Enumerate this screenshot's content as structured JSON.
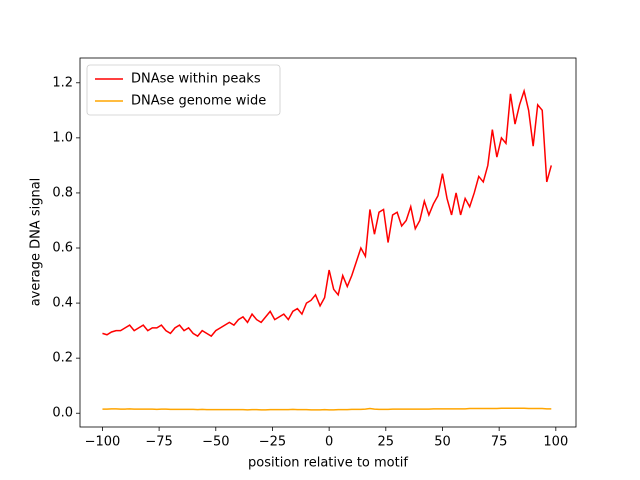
{
  "chart_data": {
    "type": "line",
    "xlabel": "position relative to motif",
    "ylabel": "average DNA signal",
    "x": [
      -100,
      -98,
      -96,
      -94,
      -92,
      -90,
      -88,
      -86,
      -84,
      -82,
      -80,
      -78,
      -76,
      -74,
      -72,
      -70,
      -68,
      -66,
      -64,
      -62,
      -60,
      -58,
      -56,
      -54,
      -52,
      -50,
      -48,
      -46,
      -44,
      -42,
      -40,
      -38,
      -36,
      -34,
      -32,
      -30,
      -28,
      -26,
      -24,
      -22,
      -20,
      -18,
      -16,
      -14,
      -12,
      -10,
      -8,
      -6,
      -4,
      -2,
      0,
      2,
      4,
      6,
      8,
      10,
      12,
      14,
      16,
      18,
      20,
      22,
      24,
      26,
      28,
      30,
      32,
      34,
      36,
      38,
      40,
      42,
      44,
      46,
      48,
      50,
      52,
      54,
      56,
      58,
      60,
      62,
      64,
      66,
      68,
      70,
      72,
      74,
      76,
      78,
      80,
      82,
      84,
      86,
      88,
      90,
      92,
      94,
      96,
      98
    ],
    "series": [
      {
        "name": "DNAse within peaks",
        "color": "#ff0000",
        "values": [
          0.29,
          0.285,
          0.295,
          0.3,
          0.3,
          0.31,
          0.32,
          0.3,
          0.31,
          0.32,
          0.3,
          0.31,
          0.31,
          0.32,
          0.3,
          0.29,
          0.31,
          0.32,
          0.3,
          0.31,
          0.29,
          0.28,
          0.3,
          0.29,
          0.28,
          0.3,
          0.31,
          0.32,
          0.33,
          0.32,
          0.34,
          0.35,
          0.33,
          0.36,
          0.34,
          0.33,
          0.35,
          0.37,
          0.34,
          0.35,
          0.36,
          0.34,
          0.37,
          0.38,
          0.36,
          0.4,
          0.41,
          0.43,
          0.39,
          0.42,
          0.52,
          0.45,
          0.43,
          0.5,
          0.46,
          0.5,
          0.55,
          0.6,
          0.57,
          0.74,
          0.65,
          0.73,
          0.74,
          0.62,
          0.72,
          0.73,
          0.68,
          0.7,
          0.75,
          0.67,
          0.7,
          0.77,
          0.72,
          0.76,
          0.79,
          0.87,
          0.78,
          0.72,
          0.8,
          0.72,
          0.78,
          0.75,
          0.8,
          0.86,
          0.84,
          0.9,
          1.03,
          0.93,
          1.0,
          0.98,
          1.16,
          1.05,
          1.12,
          1.17,
          1.1,
          0.97,
          1.12,
          1.1,
          0.84,
          0.9
        ]
      },
      {
        "name": "DNAse genome wide",
        "color": "#ffa500",
        "values": [
          0.015,
          0.015,
          0.016,
          0.016,
          0.015,
          0.015,
          0.016,
          0.015,
          0.015,
          0.015,
          0.015,
          0.015,
          0.014,
          0.015,
          0.015,
          0.014,
          0.014,
          0.014,
          0.014,
          0.014,
          0.014,
          0.013,
          0.014,
          0.013,
          0.013,
          0.013,
          0.013,
          0.013,
          0.013,
          0.013,
          0.013,
          0.013,
          0.012,
          0.013,
          0.013,
          0.012,
          0.012,
          0.013,
          0.013,
          0.013,
          0.013,
          0.013,
          0.014,
          0.013,
          0.013,
          0.013,
          0.012,
          0.012,
          0.012,
          0.013,
          0.012,
          0.012,
          0.013,
          0.013,
          0.013,
          0.014,
          0.014,
          0.014,
          0.015,
          0.017,
          0.015,
          0.014,
          0.014,
          0.014,
          0.015,
          0.015,
          0.015,
          0.015,
          0.015,
          0.015,
          0.015,
          0.015,
          0.015,
          0.016,
          0.016,
          0.016,
          0.016,
          0.016,
          0.016,
          0.016,
          0.016,
          0.017,
          0.017,
          0.017,
          0.017,
          0.017,
          0.017,
          0.017,
          0.018,
          0.018,
          0.018,
          0.018,
          0.018,
          0.018,
          0.017,
          0.017,
          0.017,
          0.017,
          0.016,
          0.016
        ]
      }
    ],
    "xlim": [
      -109.9,
      108.9
    ],
    "ylim": [
      -0.05,
      1.29
    ],
    "xticks": [
      {
        "value": -100,
        "label": "−100"
      },
      {
        "value": -75,
        "label": "−75"
      },
      {
        "value": -50,
        "label": "−50"
      },
      {
        "value": -25,
        "label": "−25"
      },
      0,
      25,
      50,
      75,
      100
    ],
    "yticks": [
      {
        "value": 0,
        "label": "0.0"
      },
      {
        "value": 0.2,
        "label": "0.2"
      },
      {
        "value": 0.4,
        "label": "0.4"
      },
      {
        "value": 0.6,
        "label": "0.6"
      },
      {
        "value": 0.8,
        "label": "0.8"
      },
      {
        "value": 1.0,
        "label": "1.0"
      },
      {
        "value": 1.2,
        "label": "1.2"
      }
    ],
    "legend": "upper left"
  }
}
